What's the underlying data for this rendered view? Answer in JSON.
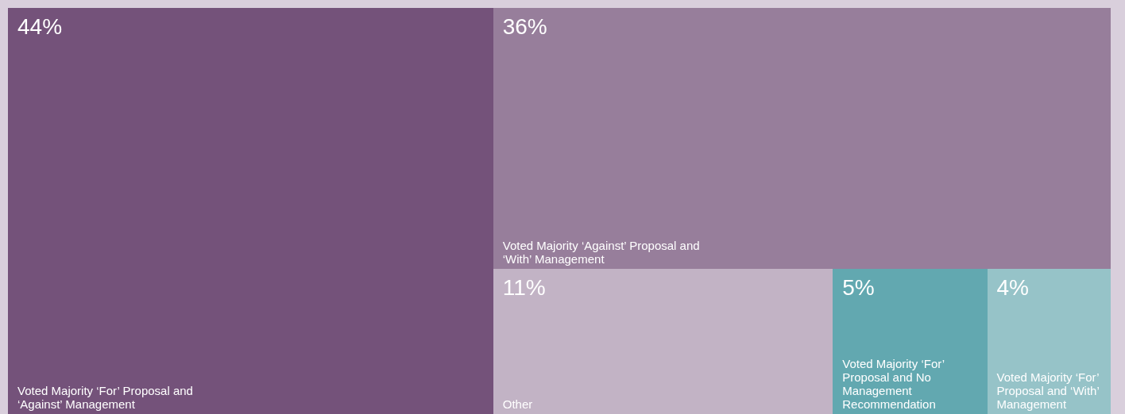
{
  "chart_data": {
    "type": "other",
    "categories": [
      "Voted Majority ‘For’ Proposal and ‘Against’ Management",
      "Voted Majority ‘Against’ Proposal and ‘With’ Management",
      "Other",
      "Voted Majority ‘For’ Proposal and No Management Recommendation",
      "Voted Majority ‘For’ Proposal and ‘With’ Management"
    ],
    "values": [
      44,
      36,
      11,
      5,
      4
    ],
    "value_labels": [
      "44%",
      "36%",
      "11%",
      "5%",
      "4%"
    ],
    "colors": [
      "#74527a",
      "#977e9b",
      "#c2b3c5",
      "#62a8b0",
      "#96c3c8"
    ]
  }
}
